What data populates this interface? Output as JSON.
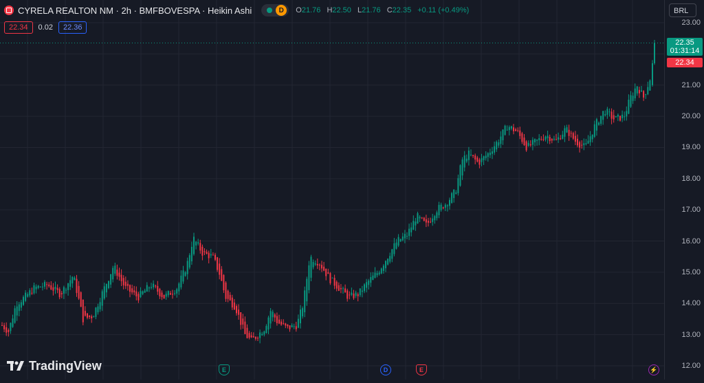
{
  "header": {
    "title": "CYRELA REALTON NM · 2h · BMFBOVESPA · Heikin Ashi",
    "status_badge": "D",
    "ohlc": {
      "open_label": "O",
      "open": "21.76",
      "high_label": "H",
      "high": "22.50",
      "low_label": "L",
      "low": "21.76",
      "close_label": "C",
      "close": "22.35",
      "change": "+0.11 (+0.49%)"
    }
  },
  "trade": {
    "sell_price": "22.34",
    "spread": "0.02",
    "buy_price": "22.36"
  },
  "price_scale": {
    "currency": "BRL",
    "ticks": [
      "23.00",
      "22.00",
      "21.00",
      "20.00",
      "19.00",
      "18.00",
      "17.00",
      "16.00",
      "15.00",
      "14.00",
      "13.00",
      "12.00"
    ],
    "last_price": "22.35",
    "countdown": "01:31:14",
    "bid_price": "22.34"
  },
  "events": {
    "earnings_1": "E",
    "dividend": "D",
    "earnings_2": "E",
    "flash": "⚡"
  },
  "branding": {
    "logo_text": "TradingView"
  },
  "colors": {
    "up": "#089981",
    "down": "#f23645",
    "background": "#161a25",
    "grid": "#232632"
  },
  "chart_data": {
    "type": "candlestick",
    "chart_style": "Heikin Ashi",
    "symbol": "CYRELA REALTON NM",
    "interval": "2h",
    "ylim": [
      12,
      23
    ],
    "anchors": [
      [
        0,
        13.3
      ],
      [
        0.01,
        13.1
      ],
      [
        0.022,
        14.0
      ],
      [
        0.035,
        14.2
      ],
      [
        0.05,
        14.5
      ],
      [
        0.07,
        14.6
      ],
      [
        0.09,
        14.3
      ],
      [
        0.11,
        14.9
      ],
      [
        0.125,
        13.5
      ],
      [
        0.14,
        13.6
      ],
      [
        0.16,
        14.6
      ],
      [
        0.172,
        15.2
      ],
      [
        0.19,
        14.5
      ],
      [
        0.21,
        14.2
      ],
      [
        0.23,
        14.6
      ],
      [
        0.25,
        14.2
      ],
      [
        0.27,
        14.5
      ],
      [
        0.285,
        15.2
      ],
      [
        0.295,
        16.1
      ],
      [
        0.31,
        15.6
      ],
      [
        0.325,
        15.5
      ],
      [
        0.335,
        15.0
      ],
      [
        0.345,
        14.2
      ],
      [
        0.36,
        13.9
      ],
      [
        0.375,
        13.0
      ],
      [
        0.385,
        12.8
      ],
      [
        0.395,
        13.0
      ],
      [
        0.405,
        13.2
      ],
      [
        0.415,
        13.8
      ],
      [
        0.425,
        13.4
      ],
      [
        0.44,
        13.2
      ],
      [
        0.455,
        13.3
      ],
      [
        0.465,
        14.0
      ],
      [
        0.475,
        15.5
      ],
      [
        0.49,
        15.3
      ],
      [
        0.505,
        14.8
      ],
      [
        0.52,
        14.5
      ],
      [
        0.535,
        14.2
      ],
      [
        0.55,
        14.3
      ],
      [
        0.565,
        14.7
      ],
      [
        0.58,
        15.0
      ],
      [
        0.595,
        15.5
      ],
      [
        0.61,
        16.0
      ],
      [
        0.625,
        16.2
      ],
      [
        0.64,
        16.8
      ],
      [
        0.655,
        16.5
      ],
      [
        0.67,
        17.0
      ],
      [
        0.685,
        17.2
      ],
      [
        0.7,
        17.6
      ],
      [
        0.71,
        18.6
      ],
      [
        0.72,
        18.8
      ],
      [
        0.735,
        18.5
      ],
      [
        0.75,
        18.8
      ],
      [
        0.765,
        19.2
      ],
      [
        0.78,
        19.7
      ],
      [
        0.795,
        19.5
      ],
      [
        0.81,
        19.0
      ],
      [
        0.825,
        19.2
      ],
      [
        0.84,
        19.4
      ],
      [
        0.855,
        19.2
      ],
      [
        0.87,
        19.6
      ],
      [
        0.885,
        19.2
      ],
      [
        0.9,
        19.0
      ],
      [
        0.915,
        19.7
      ],
      [
        0.93,
        20.2
      ],
      [
        0.945,
        19.9
      ],
      [
        0.96,
        20.0
      ],
      [
        0.97,
        20.6
      ],
      [
        0.98,
        21.0
      ],
      [
        0.99,
        20.6
      ],
      [
        1.0,
        21.2
      ]
    ],
    "last_close": 22.35
  }
}
